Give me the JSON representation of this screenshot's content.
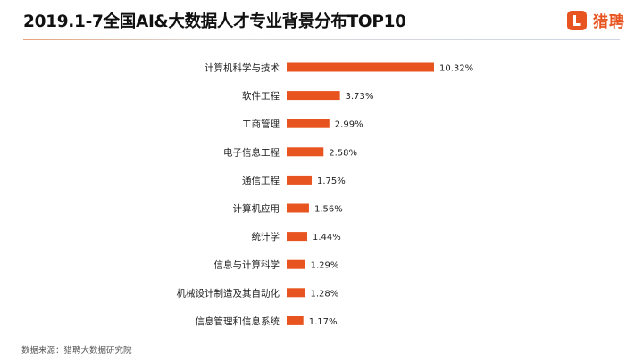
{
  "title": "2019.1-7全国AI&大数据人才专业背景分布TOP10",
  "logo": {
    "text": "猎聘",
    "icon": "liepin-logo-icon",
    "color": "#e8541f"
  },
  "source": "数据来源：猎聘大数据研究院",
  "colors": {
    "bar": "#e8541f",
    "text": "#222222"
  },
  "chart_data": {
    "type": "bar",
    "orientation": "horizontal",
    "title": "2019.1-7全国AI&大数据人才专业背景分布TOP10",
    "categories": [
      "计算机科学与技术",
      "软件工程",
      "工商管理",
      "电子信息工程",
      "通信工程",
      "计算机应用",
      "统计学",
      "信息与计算科学",
      "机械设计制造及其自动化",
      "信息管理和信息系统"
    ],
    "values": [
      10.32,
      3.73,
      2.99,
      2.58,
      1.75,
      1.56,
      1.44,
      1.29,
      1.28,
      1.17
    ],
    "value_labels": [
      "10.32%",
      "3.73%",
      "2.99%",
      "2.58%",
      "1.75%",
      "1.56%",
      "1.44%",
      "1.29%",
      "1.28%",
      "1.17%"
    ],
    "unit": "%",
    "xlim": [
      0,
      10.32
    ],
    "grid": false,
    "legend": "none"
  }
}
